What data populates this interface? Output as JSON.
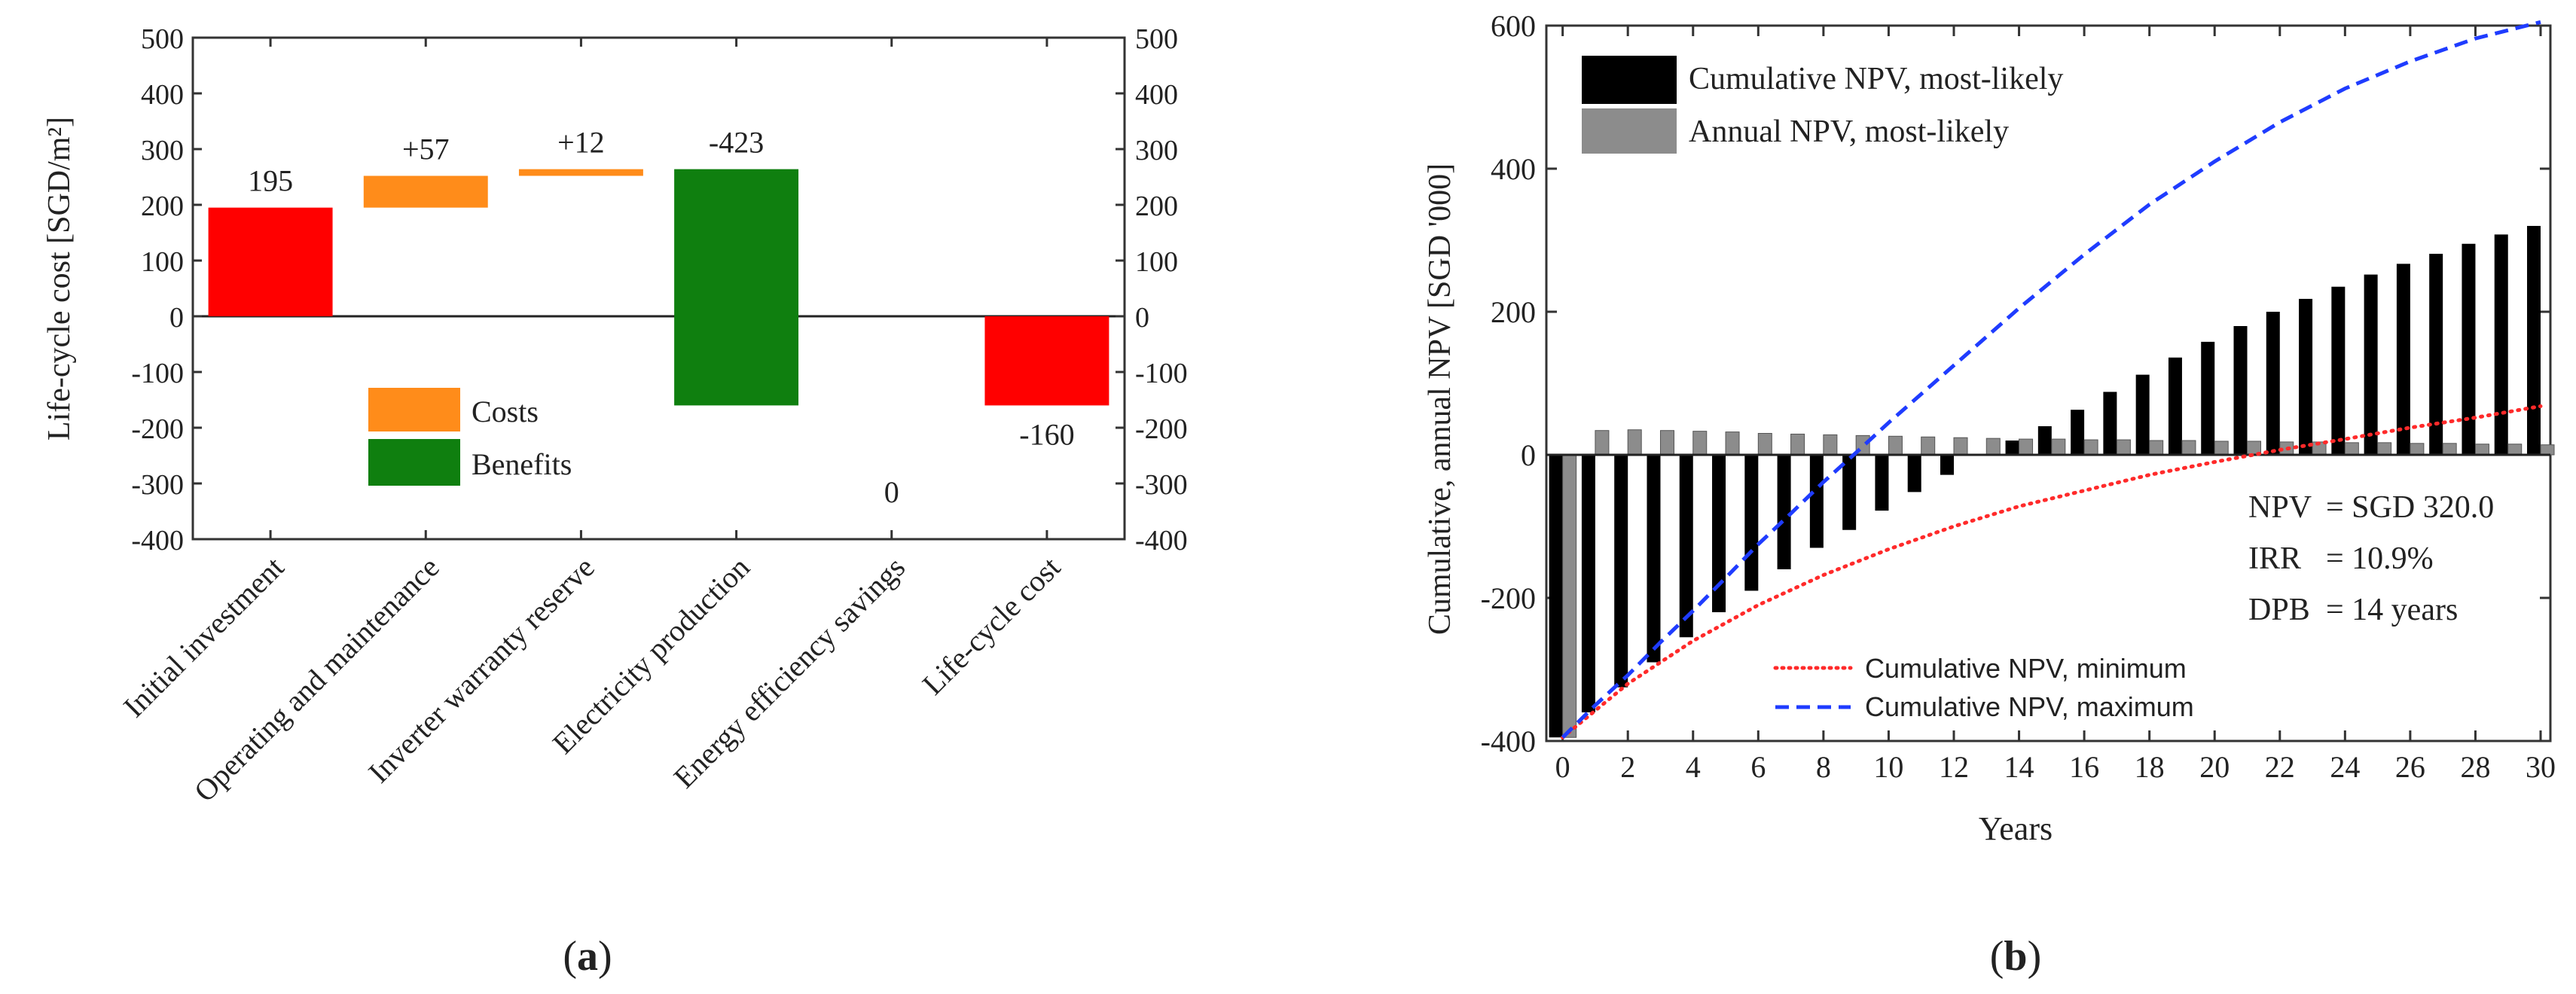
{
  "chart_data": [
    {
      "type": "bar",
      "subtype": "waterfall",
      "panel_label": "a",
      "ylabel": "Life-cycle cost [SGD/m²]",
      "ylim": [
        -400,
        500
      ],
      "yticks": [
        -400,
        -300,
        -200,
        -100,
        0,
        100,
        200,
        300,
        400,
        500
      ],
      "categories": [
        "Initial investment",
        "Operating and maintenance",
        "Inverter warranty reserve",
        "Electricity production",
        "Energy efficiency savings",
        "Life-cycle cost"
      ],
      "bars": [
        {
          "category": "Initial investment",
          "start": 0,
          "end": 195,
          "label": "195",
          "color": "#ff0000"
        },
        {
          "category": "Operating and maintenance",
          "start": 195,
          "end": 252,
          "label": "+57",
          "color": "#ff8c1a"
        },
        {
          "category": "Inverter warranty reserve",
          "start": 252,
          "end": 264,
          "label": "+12",
          "color": "#ff8c1a"
        },
        {
          "category": "Electricity production",
          "start": 264,
          "end": -160,
          "label": "-423",
          "color": "#0f7f0f"
        },
        {
          "category": "Energy efficiency savings",
          "start": -160,
          "end": -160,
          "label": "0",
          "color": "#0f7f0f"
        },
        {
          "category": "Life-cycle cost",
          "start": 0,
          "end": -160,
          "label": "-160",
          "color": "#ff0000"
        }
      ],
      "legend": {
        "position": "center-left",
        "items": [
          {
            "label": "Costs",
            "color": "#ff8c1a"
          },
          {
            "label": "Benefits",
            "color": "#0f7f0f"
          }
        ]
      }
    },
    {
      "type": "bar",
      "subtype": "bar-with-lines",
      "panel_label": "b",
      "xlabel": "Years",
      "ylabel": "Cumulative, annual NPV [SGD '000]",
      "xlim": [
        -0.5,
        30.3
      ],
      "ylim": [
        -400,
        600
      ],
      "xticks": [
        0,
        2,
        4,
        6,
        8,
        10,
        12,
        14,
        16,
        18,
        20,
        22,
        24,
        26,
        28,
        30
      ],
      "yticks": [
        -400,
        -200,
        0,
        200,
        400,
        600
      ],
      "years": [
        0,
        1,
        2,
        3,
        4,
        5,
        6,
        7,
        8,
        9,
        10,
        11,
        12,
        13,
        14,
        15,
        16,
        17,
        18,
        19,
        20,
        21,
        22,
        23,
        24,
        25,
        26,
        27,
        28,
        29,
        30
      ],
      "series": [
        {
          "name": "Cumulative NPV, most-likely",
          "kind": "bar",
          "color": "#000000",
          "values": [
            -395,
            -360,
            -325,
            -290,
            -255,
            -220,
            -190,
            -160,
            -130,
            -105,
            -78,
            -52,
            -28,
            0,
            20,
            40,
            63,
            88,
            112,
            136,
            158,
            180,
            200,
            218,
            235,
            252,
            267,
            281,
            295,
            308,
            320
          ]
        },
        {
          "name": "Annual NPV, most-likely",
          "kind": "bar",
          "color": "#8c8c8c",
          "values": [
            -395,
            34,
            35,
            34,
            33,
            32,
            30,
            29,
            28,
            27,
            26,
            25,
            24,
            23,
            22,
            22,
            21,
            21,
            20,
            20,
            19,
            19,
            18,
            18,
            17,
            17,
            16,
            16,
            15,
            15,
            14
          ]
        },
        {
          "name": "Cumulative NPV, minimum",
          "kind": "line",
          "style": "dotted",
          "color": "#ff2a2a",
          "x": [
            0,
            2,
            4,
            6,
            8,
            10,
            12,
            14,
            16,
            18,
            20,
            22,
            24,
            26,
            28,
            30
          ],
          "values": [
            -395,
            -320,
            -260,
            -210,
            -168,
            -132,
            -100,
            -72,
            -50,
            -28,
            -10,
            7,
            22,
            38,
            52,
            68
          ]
        },
        {
          "name": "Cumulative NPV, maximum",
          "kind": "line",
          "style": "dashed",
          "color": "#1f3cff",
          "x": [
            0,
            1,
            2,
            3,
            4,
            5,
            6,
            7,
            8,
            9,
            10,
            12,
            14,
            16,
            18,
            20,
            22,
            24,
            26,
            28,
            30
          ],
          "values": [
            -395,
            -350,
            -308,
            -262,
            -218,
            -172,
            -125,
            -82,
            -38,
            3,
            45,
            125,
            205,
            280,
            350,
            410,
            465,
            512,
            550,
            582,
            605
          ]
        }
      ],
      "annotations": [
        {
          "label": "NPV",
          "value": "= SGD 320.0"
        },
        {
          "label": "IRR",
          "value": "= 10.9%"
        },
        {
          "label": "DPB",
          "value": "= 14 years"
        }
      ],
      "legend": {
        "position": "top-left",
        "items": [
          "Cumulative NPV, most-likely",
          "Annual NPV, most-likely",
          "Cumulative NPV, minimum",
          "Cumulative NPV, maximum"
        ]
      }
    }
  ]
}
